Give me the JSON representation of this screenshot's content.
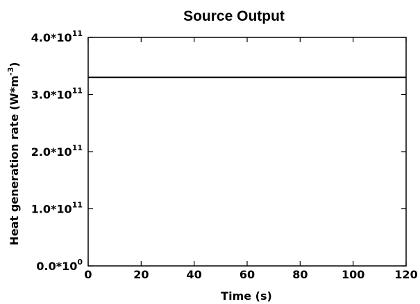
{
  "chart_data": {
    "type": "line",
    "title": "Source Output",
    "xlabel": "Time (s)",
    "ylabel": "Heat generation rate (W*m-3)",
    "ylabel_parts": {
      "main": "Heat generation rate (W*m",
      "sup": "-3",
      "end": ")"
    },
    "xlim": [
      0,
      120
    ],
    "ylim": [
      0,
      400000000000.0
    ],
    "xticks": [
      0,
      20,
      40,
      60,
      80,
      100,
      120
    ],
    "xtick_labels": [
      "0",
      "20",
      "40",
      "60",
      "80",
      "100",
      "120"
    ],
    "yticks": [
      {
        "value": 0,
        "mantissa": "0.0*10",
        "exp": "0"
      },
      {
        "value": 100000000000.0,
        "mantissa": "1.0*10",
        "exp": "11"
      },
      {
        "value": 200000000000.0,
        "mantissa": "2.0*10",
        "exp": "11"
      },
      {
        "value": 300000000000.0,
        "mantissa": "3.0*10",
        "exp": "11"
      },
      {
        "value": 400000000000.0,
        "mantissa": "4.0*10",
        "exp": "11"
      }
    ],
    "grid": false,
    "series": [
      {
        "x": [
          0,
          120
        ],
        "y": [
          330000000000.0,
          330000000000.0
        ],
        "color": "#000000"
      }
    ]
  }
}
